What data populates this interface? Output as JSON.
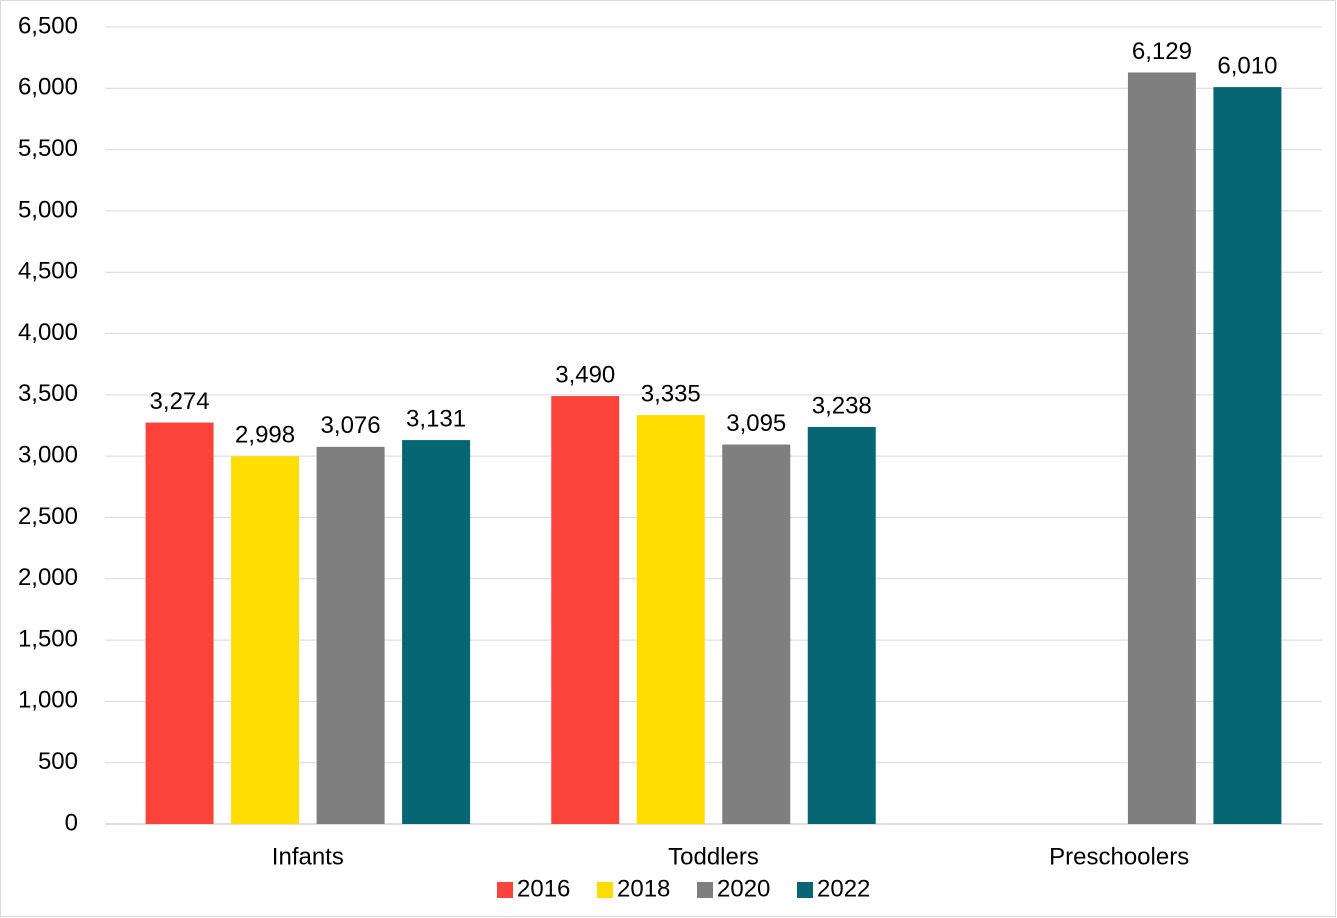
{
  "chart_data": {
    "type": "bar",
    "categories": [
      "Infants",
      "Toddlers",
      "Preschoolers"
    ],
    "series": [
      {
        "name": "2016",
        "color": "#fc433b",
        "values": [
          3274,
          3490,
          null
        ],
        "value_labels": [
          "3,274",
          "3,490",
          null
        ]
      },
      {
        "name": "2018",
        "color": "#ffdd00",
        "values": [
          2998,
          3335,
          null
        ],
        "value_labels": [
          "2,998",
          "3,335",
          null
        ]
      },
      {
        "name": "2020",
        "color": "#7f7f7f",
        "values": [
          3076,
          3095,
          6129
        ],
        "value_labels": [
          "3,076",
          "3,095",
          "6,129"
        ]
      },
      {
        "name": "2022",
        "color": "#076673",
        "values": [
          3131,
          3238,
          6010
        ],
        "value_labels": [
          "3,131",
          "3,238",
          "6,010"
        ]
      }
    ],
    "ylim": [
      0,
      6500
    ],
    "yticks": [
      0,
      500,
      {
        "value": 1000,
        "label": "1,000"
      },
      {
        "value": 1500,
        "label": "1,500"
      },
      {
        "value": 2000,
        "label": "2,000"
      },
      {
        "value": 2500,
        "label": "2,500"
      },
      {
        "value": 3000,
        "label": "3,000"
      },
      {
        "value": 3500,
        "label": "3,500"
      },
      {
        "value": 4000,
        "label": "4,000"
      },
      {
        "value": 4500,
        "label": "4,500"
      },
      {
        "value": 5000,
        "label": "5,000"
      },
      {
        "value": 5500,
        "label": "5,500"
      },
      {
        "value": 6000,
        "label": "6,000"
      },
      {
        "value": 6500,
        "label": "6,500"
      }
    ],
    "grid": true,
    "legend": "bottom"
  }
}
